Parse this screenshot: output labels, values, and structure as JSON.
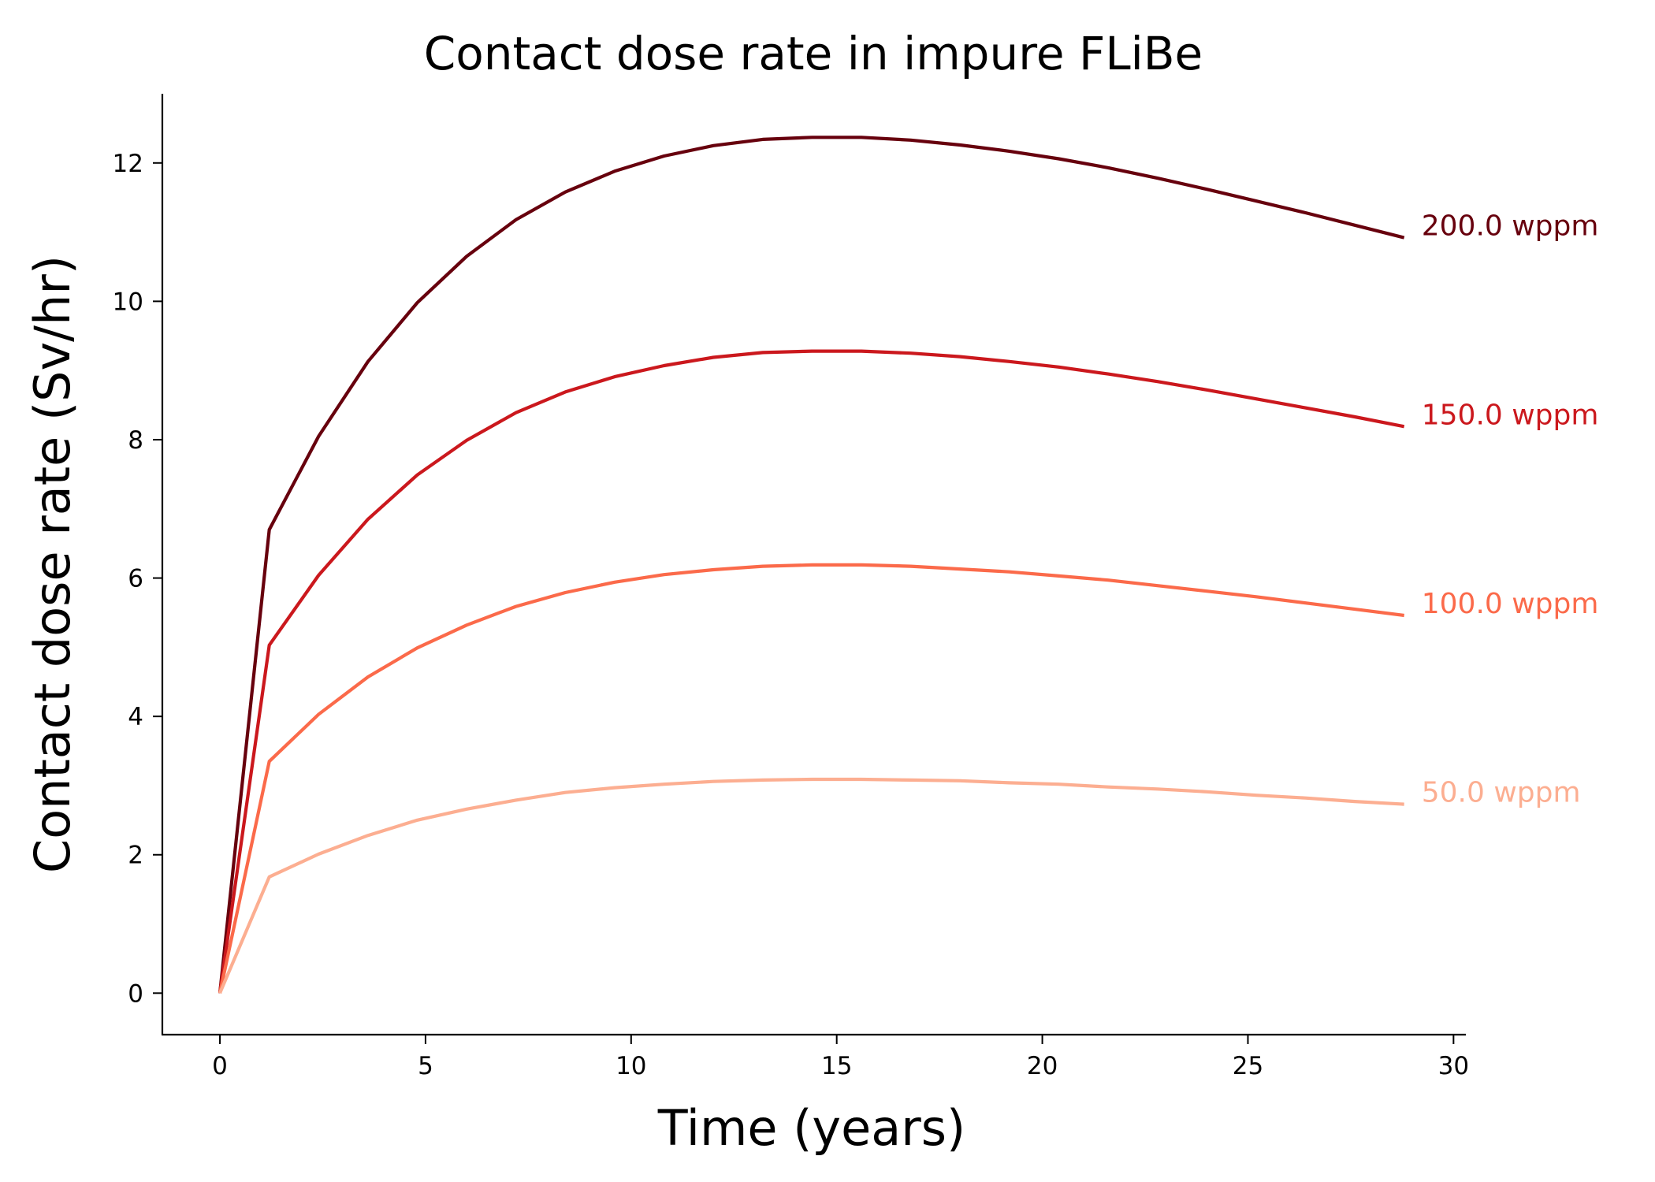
{
  "chart_data": {
    "type": "line",
    "title": "Contact dose rate in impure FLiBe",
    "xlabel": "Time (years)",
    "ylabel": "Contact dose rate (Sv/hr)",
    "xlim": [
      -1.4,
      30.3
    ],
    "ylim": [
      -0.6,
      13.0
    ],
    "xticks": [
      0,
      5,
      10,
      15,
      20,
      25,
      30
    ],
    "yticks": [
      0,
      2,
      4,
      6,
      8,
      10,
      12
    ],
    "grid": false,
    "legend": "inline labels at line ends",
    "x": [
      0,
      1.2,
      2.4,
      3.6,
      4.8,
      6.0,
      7.2,
      8.4,
      9.6,
      10.8,
      12.0,
      13.2,
      14.4,
      15.6,
      16.8,
      18.0,
      19.2,
      20.4,
      21.6,
      22.8,
      24.0,
      25.2,
      26.4,
      27.6,
      28.8
    ],
    "series": [
      {
        "name": "200.0 wppm",
        "color": "#67000d",
        "values": [
          0,
          6.7,
          8.05,
          9.13,
          9.98,
          10.65,
          11.18,
          11.58,
          11.88,
          12.1,
          12.25,
          12.34,
          12.37,
          12.37,
          12.33,
          12.26,
          12.17,
          12.06,
          11.93,
          11.78,
          11.62,
          11.45,
          11.28,
          11.1,
          10.92
        ]
      },
      {
        "name": "150.0 wppm",
        "color": "#cb181d",
        "values": [
          0,
          5.03,
          6.04,
          6.85,
          7.49,
          7.99,
          8.39,
          8.69,
          8.91,
          9.07,
          9.19,
          9.26,
          9.28,
          9.28,
          9.25,
          9.2,
          9.13,
          9.05,
          8.95,
          8.84,
          8.72,
          8.59,
          8.46,
          8.33,
          8.19
        ]
      },
      {
        "name": "100.0 wppm",
        "color": "#fb6a4a",
        "values": [
          0,
          3.35,
          4.03,
          4.57,
          4.99,
          5.32,
          5.59,
          5.79,
          5.94,
          6.05,
          6.12,
          6.17,
          6.19,
          6.19,
          6.17,
          6.13,
          6.09,
          6.03,
          5.97,
          5.89,
          5.81,
          5.73,
          5.64,
          5.55,
          5.46
        ]
      },
      {
        "name": "50.0 wppm",
        "color": "#fcae91",
        "values": [
          0,
          1.68,
          2.01,
          2.28,
          2.5,
          2.66,
          2.79,
          2.9,
          2.97,
          3.02,
          3.06,
          3.08,
          3.09,
          3.09,
          3.08,
          3.07,
          3.04,
          3.02,
          2.98,
          2.95,
          2.91,
          2.86,
          2.82,
          2.77,
          2.73
        ]
      }
    ]
  }
}
